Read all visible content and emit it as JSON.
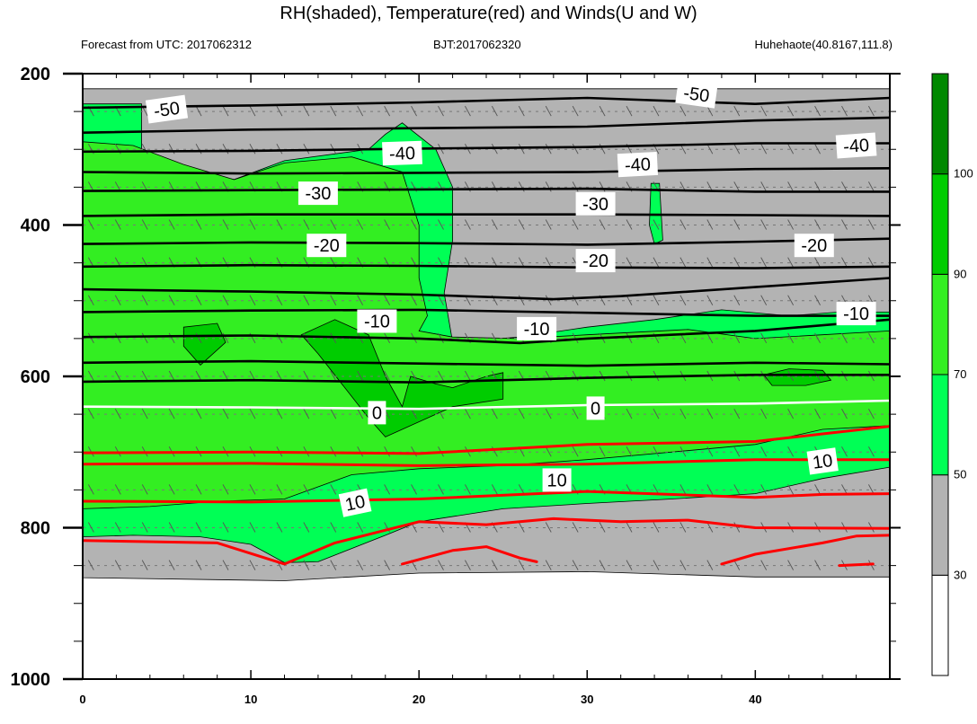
{
  "header": {
    "title": "RH(shaded), Temperature(red) and Winds(U and W)",
    "left_label": "Forecast from UTC: 2017062312",
    "center_label": "BJT:2017062320",
    "right_label": "Huhehaote(40.8167,111.8)"
  },
  "chart_data": {
    "type": "contour",
    "xlabel": "",
    "ylabel": "",
    "xlim": [
      0,
      48
    ],
    "ylim": [
      200,
      1000
    ],
    "y_inverted": true,
    "x_ticks": [
      0,
      10,
      20,
      30,
      40
    ],
    "y_ticks": [
      200,
      400,
      600,
      800,
      1000
    ],
    "grid": false,
    "colorbar": {
      "placement": "right",
      "levels": [
        30,
        50,
        70,
        90,
        100
      ],
      "tick_labels": [
        "30",
        "50",
        "70",
        "90",
        "100"
      ],
      "colors": [
        "#ffffff",
        "#b3b3b3",
        "#00ff55",
        "#33ee22",
        "#00cc00",
        "#008800"
      ]
    },
    "rh_regions": [
      {
        "class": ">=30",
        "color": "#b3b3b3",
        "polygon": [
          [
            0,
            220
          ],
          [
            48,
            220
          ],
          [
            48,
            865
          ],
          [
            40,
            865
          ],
          [
            30,
            858
          ],
          [
            20,
            860
          ],
          [
            12,
            870
          ],
          [
            0,
            866
          ]
        ]
      },
      {
        "class": ">=50",
        "color": "#00ff55",
        "polygon": [
          [
            0,
            240
          ],
          [
            3.5,
            240
          ],
          [
            3.5,
            300
          ],
          [
            6,
            325
          ],
          [
            9,
            340
          ],
          [
            12,
            315
          ],
          [
            17,
            300
          ],
          [
            18,
            280
          ],
          [
            19,
            265
          ],
          [
            21,
            300
          ],
          [
            22,
            350
          ],
          [
            22,
            420
          ],
          [
            21.5,
            490
          ],
          [
            22,
            555
          ],
          [
            26,
            548
          ],
          [
            30,
            535
          ],
          [
            34,
            525
          ],
          [
            38,
            512
          ],
          [
            42,
            520
          ],
          [
            45,
            515
          ],
          [
            48,
            515
          ],
          [
            48,
            720
          ],
          [
            44,
            735
          ],
          [
            40,
            755
          ],
          [
            35,
            762
          ],
          [
            30,
            768
          ],
          [
            25,
            775
          ],
          [
            20,
            792
          ],
          [
            18,
            810
          ],
          [
            14,
            845
          ],
          [
            12,
            846
          ],
          [
            10,
            822
          ],
          [
            7,
            812
          ],
          [
            3,
            810
          ],
          [
            0,
            812
          ]
        ]
      },
      {
        "class": ">=50",
        "color": "#00ff55",
        "polygon": [
          [
            33.8,
            345
          ],
          [
            34.3,
            345
          ],
          [
            34.5,
            420
          ],
          [
            34,
            425
          ],
          [
            33.7,
            400
          ]
        ]
      },
      {
        "class": ">=70",
        "color": "#33ee22",
        "polygon": [
          [
            0,
            290
          ],
          [
            3,
            295
          ],
          [
            6,
            320
          ],
          [
            9,
            340
          ],
          [
            12,
            318
          ],
          [
            16,
            310
          ],
          [
            19,
            330
          ],
          [
            20,
            400
          ],
          [
            20,
            470
          ],
          [
            20.5,
            520
          ],
          [
            20,
            540
          ],
          [
            22,
            548
          ],
          [
            26,
            550
          ],
          [
            30,
            545
          ],
          [
            36,
            538
          ],
          [
            40,
            550
          ],
          [
            44,
            545
          ],
          [
            48,
            540
          ],
          [
            48,
            665
          ],
          [
            44,
            670
          ],
          [
            40,
            690
          ],
          [
            35,
            700
          ],
          [
            30,
            710
          ],
          [
            25,
            718
          ],
          [
            20,
            722
          ],
          [
            16,
            730
          ],
          [
            12,
            762
          ],
          [
            8,
            765
          ],
          [
            4,
            772
          ],
          [
            0,
            775
          ]
        ]
      },
      {
        "class": ">=90",
        "color": "#00cc00",
        "polygon": [
          [
            6,
            535
          ],
          [
            8,
            530
          ],
          [
            8.5,
            555
          ],
          [
            7,
            585
          ],
          [
            6,
            560
          ]
        ]
      },
      {
        "class": ">=90",
        "color": "#00cc00",
        "polygon": [
          [
            13,
            545
          ],
          [
            15,
            525
          ],
          [
            17,
            545
          ],
          [
            18,
            600
          ],
          [
            19,
            640
          ],
          [
            19.5,
            600
          ],
          [
            21,
            610
          ],
          [
            22,
            615
          ],
          [
            24,
            600
          ],
          [
            25,
            595
          ],
          [
            25,
            630
          ],
          [
            22,
            640
          ],
          [
            18,
            680
          ],
          [
            17,
            655
          ],
          [
            14,
            570
          ]
        ]
      },
      {
        "class": ">=90",
        "color": "#00cc00",
        "polygon": [
          [
            40.5,
            598
          ],
          [
            42,
            590
          ],
          [
            44,
            592
          ],
          [
            44.5,
            605
          ],
          [
            43,
            612
          ],
          [
            41,
            612
          ]
        ]
      }
    ],
    "temperature_lines": [
      {
        "value": -50,
        "color": "#000000",
        "points": [
          [
            0,
            245
          ],
          [
            10,
            242
          ],
          [
            20,
            238
          ],
          [
            30,
            232
          ],
          [
            40,
            240
          ],
          [
            48,
            232
          ]
        ]
      },
      {
        "value": -50,
        "color": "#000000",
        "points": [
          [
            0,
            278
          ],
          [
            10,
            274
          ],
          [
            20,
            272
          ],
          [
            30,
            270
          ],
          [
            40,
            262
          ],
          [
            48,
            258
          ]
        ]
      },
      {
        "value": -40,
        "color": "#000000",
        "points": [
          [
            0,
            303
          ],
          [
            10,
            302
          ],
          [
            20,
            299
          ],
          [
            30,
            297
          ],
          [
            40,
            292
          ],
          [
            48,
            292
          ]
        ]
      },
      {
        "value": -40,
        "color": "#000000",
        "points": [
          [
            0,
            330
          ],
          [
            10,
            332
          ],
          [
            20,
            331
          ],
          [
            30,
            330
          ],
          [
            40,
            326
          ],
          [
            48,
            325
          ]
        ]
      },
      {
        "value": -30,
        "color": "#000000",
        "points": [
          [
            0,
            355
          ],
          [
            10,
            354
          ],
          [
            20,
            353
          ],
          [
            30,
            352
          ],
          [
            40,
            356
          ],
          [
            48,
            356
          ]
        ]
      },
      {
        "value": -30,
        "color": "#000000",
        "points": [
          [
            0,
            388
          ],
          [
            10,
            386
          ],
          [
            20,
            386
          ],
          [
            30,
            386
          ],
          [
            40,
            387
          ],
          [
            48,
            388
          ]
        ]
      },
      {
        "value": -20,
        "color": "#000000",
        "points": [
          [
            0,
            425
          ],
          [
            10,
            423
          ],
          [
            20,
            424
          ],
          [
            30,
            426
          ],
          [
            40,
            422
          ],
          [
            48,
            418
          ]
        ]
      },
      {
        "value": -20,
        "color": "#000000",
        "points": [
          [
            0,
            455
          ],
          [
            10,
            453
          ],
          [
            20,
            454
          ],
          [
            30,
            456
          ],
          [
            40,
            457
          ],
          [
            48,
            455
          ]
        ]
      },
      {
        "value": -20,
        "color": "#000000",
        "points": [
          [
            0,
            485
          ],
          [
            10,
            488
          ],
          [
            20,
            492
          ],
          [
            28,
            498
          ],
          [
            32,
            494
          ],
          [
            40,
            482
          ],
          [
            48,
            470
          ]
        ]
      },
      {
        "value": -10,
        "color": "#000000",
        "points": [
          [
            0,
            515
          ],
          [
            10,
            513
          ],
          [
            20,
            512
          ],
          [
            30,
            516
          ],
          [
            40,
            520
          ],
          [
            48,
            520
          ]
        ]
      },
      {
        "value": -10,
        "color": "#000000",
        "points": [
          [
            0,
            548
          ],
          [
            10,
            546
          ],
          [
            20,
            550
          ],
          [
            26,
            556
          ],
          [
            30,
            550
          ],
          [
            40,
            540
          ],
          [
            48,
            525
          ]
        ]
      },
      {
        "value": -10,
        "color": "#000000",
        "points": [
          [
            0,
            582
          ],
          [
            10,
            580
          ],
          [
            20,
            583
          ],
          [
            30,
            586
          ],
          [
            40,
            582
          ],
          [
            48,
            584
          ]
        ]
      },
      {
        "value": -10,
        "color": "#000000",
        "points": [
          [
            0,
            607
          ],
          [
            10,
            605
          ],
          [
            20,
            608
          ],
          [
            30,
            602
          ],
          [
            40,
            598
          ],
          [
            48,
            598
          ]
        ]
      },
      {
        "value": 0,
        "color": "#ffffff",
        "points": [
          [
            0,
            640
          ],
          [
            10,
            641
          ],
          [
            20,
            643
          ],
          [
            30,
            638
          ],
          [
            40,
            636
          ],
          [
            48,
            632
          ]
        ]
      },
      {
        "value": 10,
        "color": "#ff0000",
        "points": [
          [
            0,
            701
          ],
          [
            10,
            700
          ],
          [
            20,
            702
          ],
          [
            30,
            690
          ],
          [
            40,
            686
          ],
          [
            44,
            676
          ],
          [
            48,
            666
          ]
        ]
      },
      {
        "value": 10,
        "color": "#ff0000",
        "points": [
          [
            0,
            716
          ],
          [
            10,
            715
          ],
          [
            20,
            718
          ],
          [
            30,
            716
          ],
          [
            40,
            710
          ],
          [
            48,
            710
          ]
        ]
      },
      {
        "value": 10,
        "color": "#ff0000",
        "points": [
          [
            0,
            765
          ],
          [
            10,
            766
          ],
          [
            20,
            762
          ],
          [
            30,
            752
          ],
          [
            40,
            760
          ],
          [
            44,
            756
          ],
          [
            48,
            755
          ]
        ]
      },
      {
        "value": 10,
        "color": "#ff0000",
        "points": [
          [
            0,
            817
          ],
          [
            8,
            820
          ],
          [
            12,
            848
          ],
          [
            15,
            820
          ],
          [
            20,
            792
          ],
          [
            24,
            796
          ],
          [
            28,
            788
          ],
          [
            32,
            792
          ],
          [
            36,
            790
          ],
          [
            40,
            800
          ],
          [
            48,
            801
          ]
        ]
      },
      {
        "value": 10,
        "color": "#ff0000",
        "points": [
          [
            19,
            848
          ],
          [
            22,
            830
          ],
          [
            24,
            825
          ],
          [
            26,
            840
          ],
          [
            27,
            845
          ]
        ]
      },
      {
        "value": 10,
        "color": "#ff0000",
        "points": [
          [
            38,
            848
          ],
          [
            40,
            835
          ],
          [
            44,
            820
          ],
          [
            46,
            811
          ],
          [
            48,
            810
          ]
        ]
      },
      {
        "value": 10,
        "color": "#ff0000",
        "points": [
          [
            45,
            850
          ],
          [
            47,
            848
          ]
        ]
      }
    ],
    "contour_labels": [
      {
        "text": "-50",
        "x": 5,
        "y": 247,
        "angle": -8
      },
      {
        "text": "-50",
        "x": 36.5,
        "y": 227,
        "angle": 8
      },
      {
        "text": "-40",
        "x": 19,
        "y": 305,
        "angle": -2
      },
      {
        "text": "-40",
        "x": 33,
        "y": 320,
        "angle": -3
      },
      {
        "text": "-40",
        "x": 46,
        "y": 295,
        "angle": -4
      },
      {
        "text": "-30",
        "x": 14,
        "y": 358,
        "angle": 0
      },
      {
        "text": "-30",
        "x": 30.5,
        "y": 372,
        "angle": 0
      },
      {
        "text": "-20",
        "x": 14.5,
        "y": 427,
        "angle": 0
      },
      {
        "text": "-20",
        "x": 30.5,
        "y": 447,
        "angle": 0
      },
      {
        "text": "-20",
        "x": 43.5,
        "y": 427,
        "angle": 0
      },
      {
        "text": "-10",
        "x": 17.5,
        "y": 527,
        "angle": 0
      },
      {
        "text": "-10",
        "x": 27,
        "y": 537,
        "angle": 0
      },
      {
        "text": "-10",
        "x": 46,
        "y": 517,
        "angle": 0
      },
      {
        "text": "0",
        "x": 17.5,
        "y": 648,
        "angle": 0
      },
      {
        "text": "0",
        "x": 30.5,
        "y": 642,
        "angle": 0
      },
      {
        "text": "10",
        "x": 16.2,
        "y": 767,
        "angle": -12
      },
      {
        "text": "10",
        "x": 28.2,
        "y": 737,
        "angle": 0
      },
      {
        "text": "10",
        "x": 44,
        "y": 712,
        "angle": -8
      }
    ],
    "dashed_levels": [
      250,
      300,
      350,
      400,
      450,
      500,
      550,
      600,
      650,
      700,
      750,
      800,
      850
    ]
  }
}
